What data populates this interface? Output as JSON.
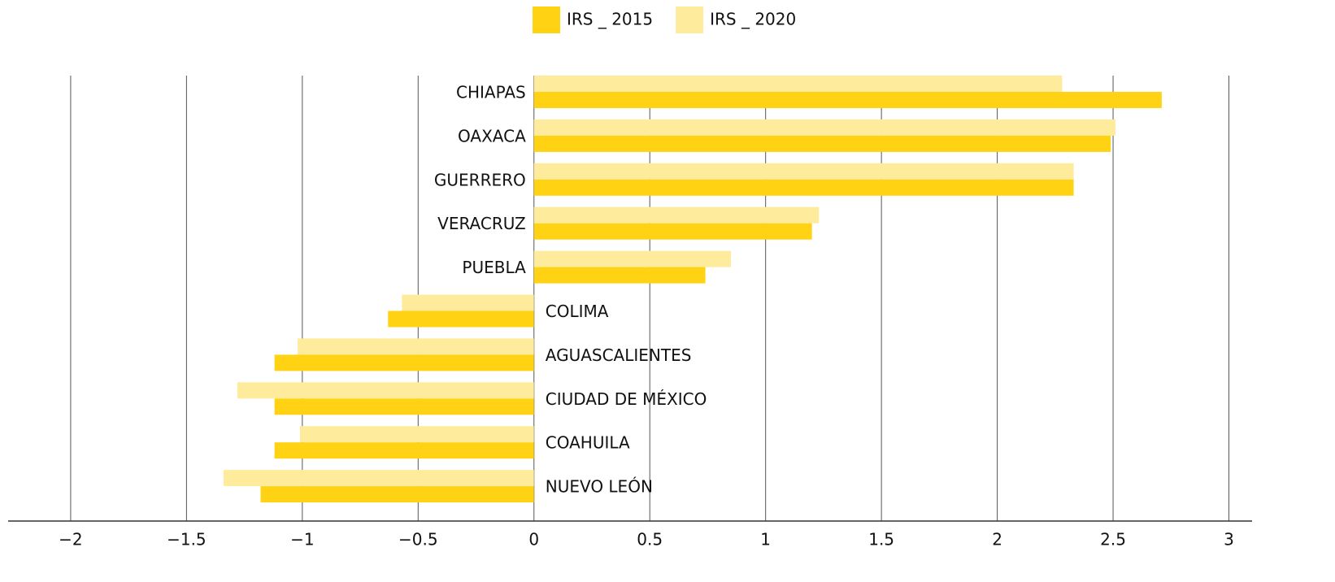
{
  "chart_data": {
    "type": "bar",
    "orientation": "horizontal",
    "categories": [
      "CHIAPAS",
      "OAXACA",
      "GUERRERO",
      "VERACRUZ",
      "PUEBLA",
      "COLIMA",
      "AGUASCALIENTES",
      "CIUDAD DE MÉXICO",
      "COAHUILA",
      "NUEVO LEÓN"
    ],
    "series": [
      {
        "name": "IRS _ 2015",
        "color": "#ffd313",
        "values": [
          2.71,
          2.49,
          2.33,
          1.2,
          0.74,
          -0.63,
          -1.12,
          -1.12,
          -1.12,
          -1.18
        ]
      },
      {
        "name": "IRS _ 2020",
        "color": "#ffeb9c",
        "values": [
          2.28,
          2.51,
          2.33,
          1.23,
          0.85,
          -0.57,
          -1.02,
          -1.28,
          -1.01,
          -1.34
        ]
      }
    ],
    "xlim": [
      -2.27,
      3.1
    ],
    "xticks": [
      {
        "value": -2,
        "label": "−2"
      },
      {
        "value": -1.5,
        "label": "−1.5"
      },
      {
        "value": -1,
        "label": "−1"
      },
      {
        "value": -0.5,
        "label": "−0.5"
      },
      0,
      0.5,
      1,
      1.5,
      2,
      2.5,
      3
    ],
    "grid": true,
    "legend": "top"
  }
}
